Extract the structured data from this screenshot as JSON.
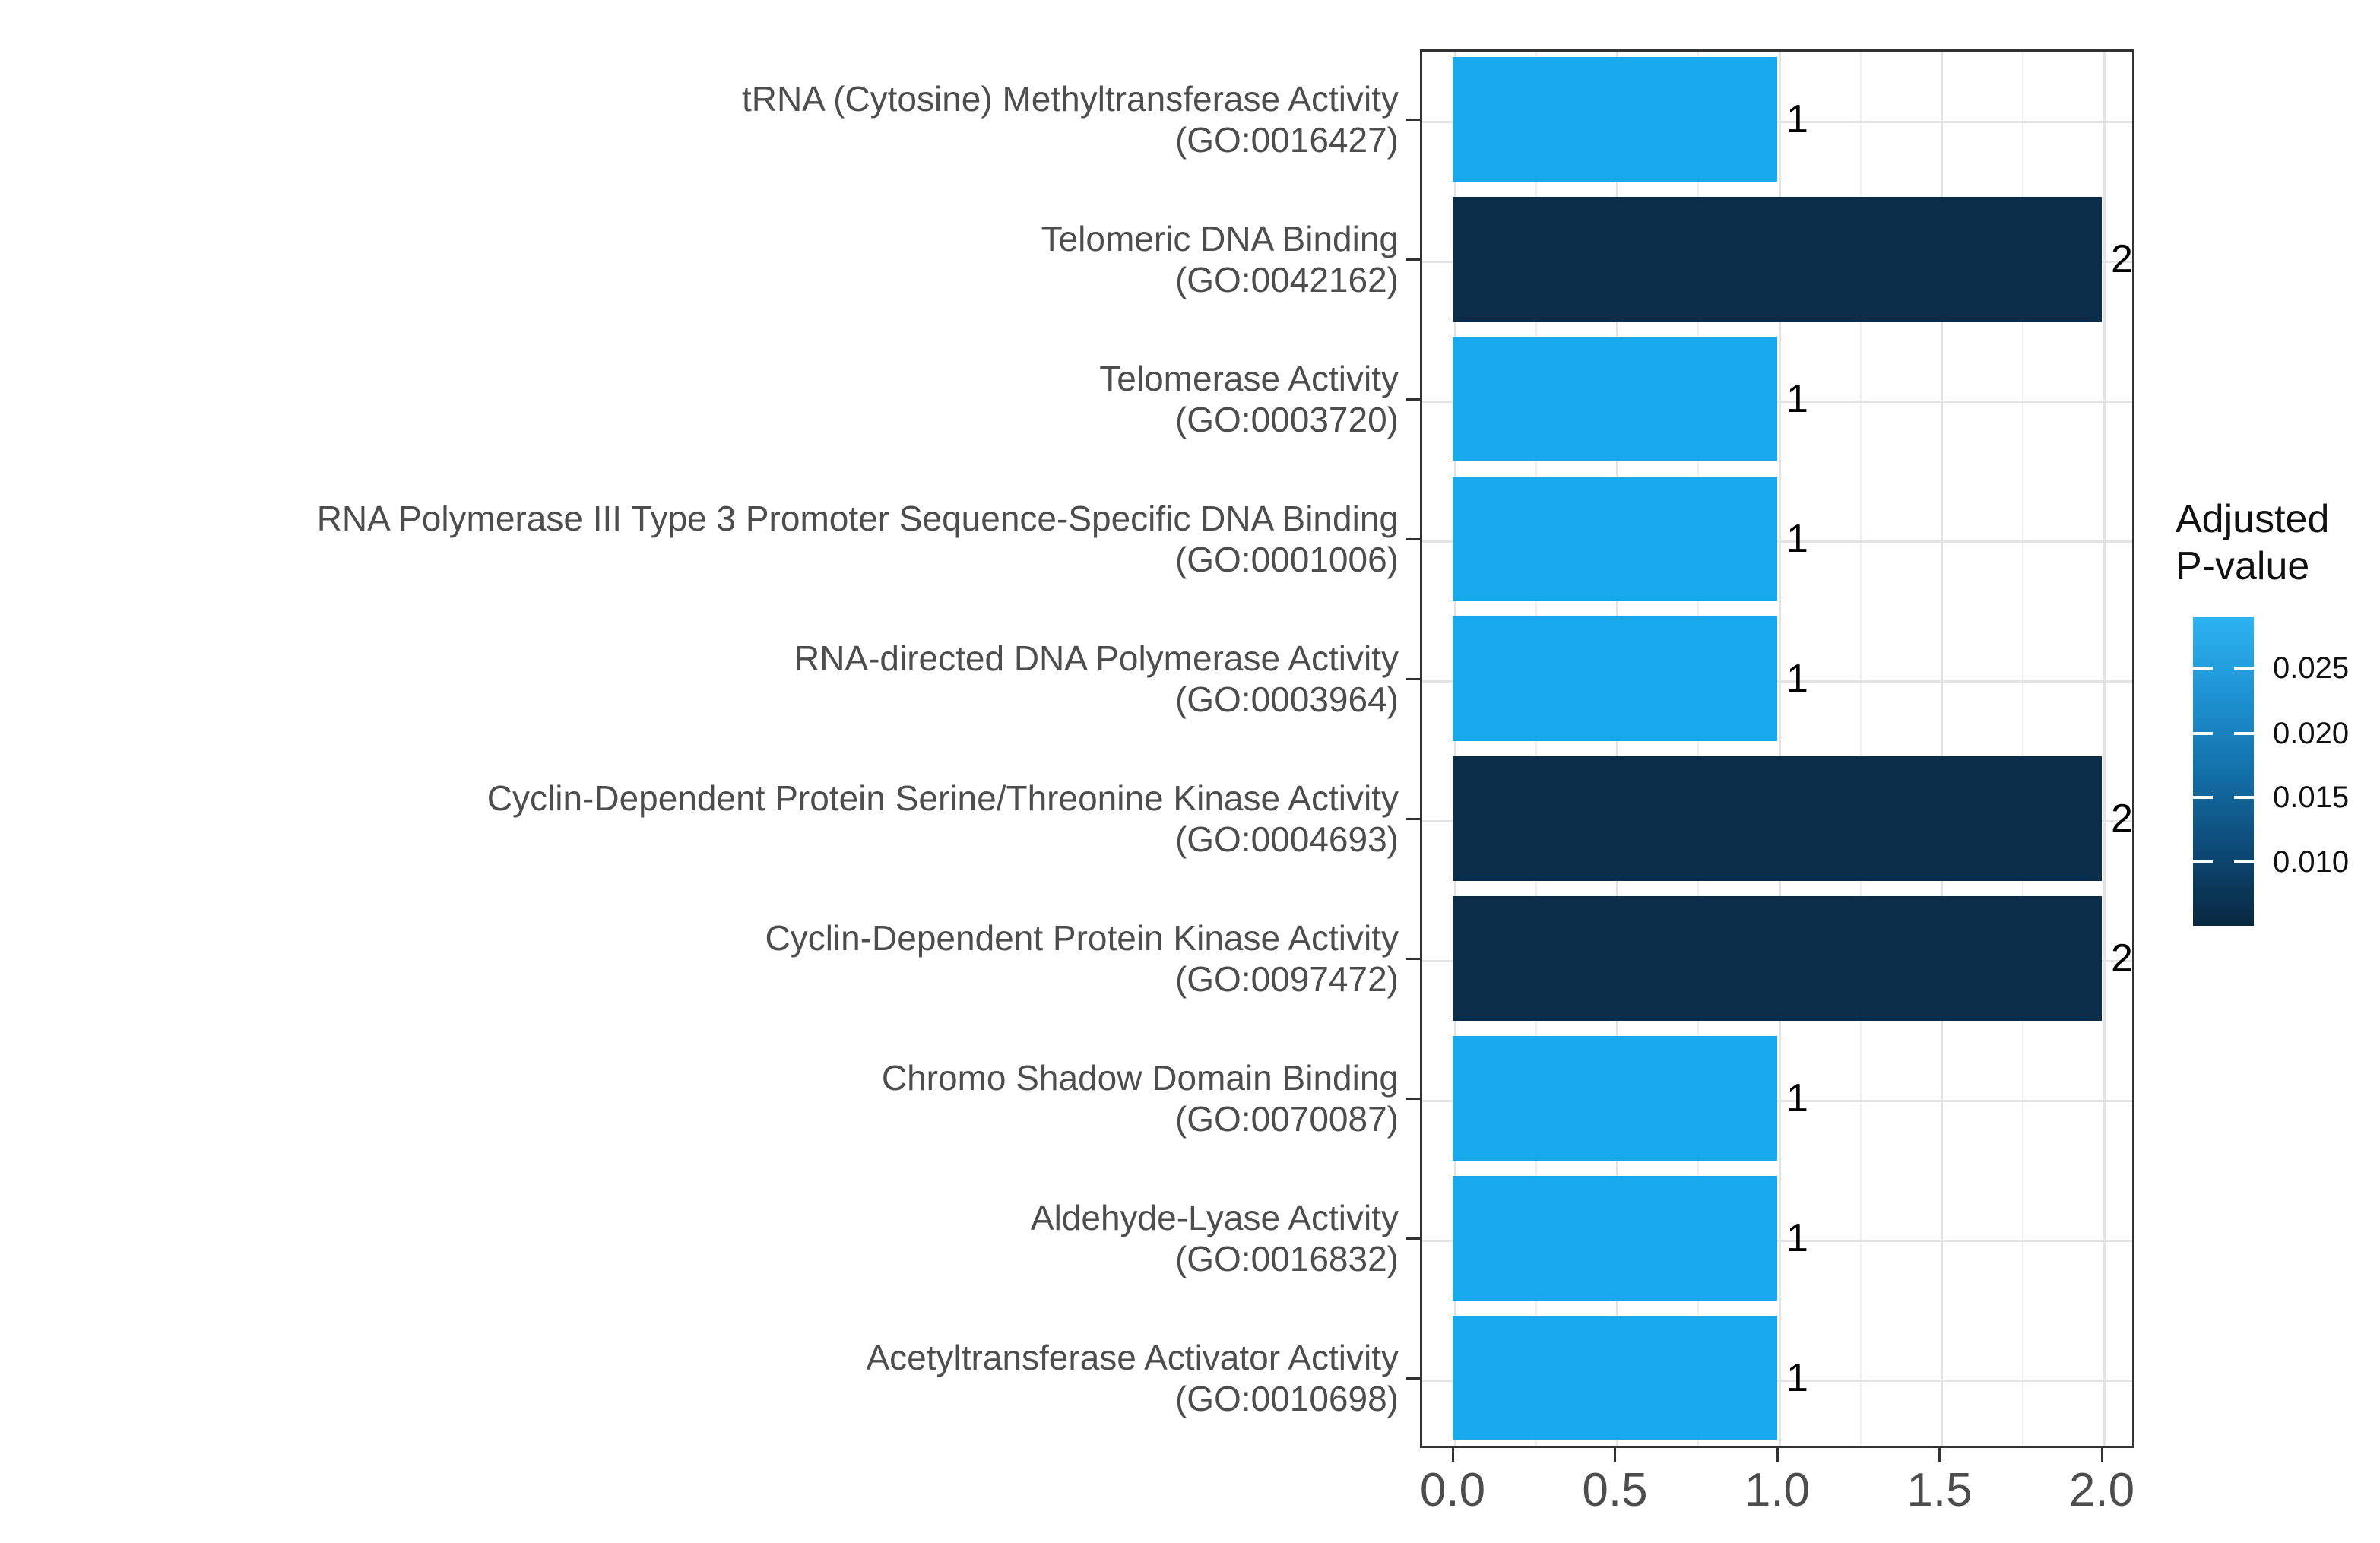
{
  "chart_data": {
    "type": "bar",
    "orientation": "horizontal",
    "title": "",
    "xlabel": "",
    "ylabel": "",
    "categories": [
      {
        "term": "tRNA (Cytosine) Methyltransferase Activity",
        "go_id": "(GO:0016427)"
      },
      {
        "term": "Telomeric DNA Binding",
        "go_id": "(GO:0042162)"
      },
      {
        "term": "Telomerase Activity",
        "go_id": "(GO:0003720)"
      },
      {
        "term": "RNA Polymerase III Type 3 Promoter Sequence-Specific DNA Binding",
        "go_id": "(GO:0001006)"
      },
      {
        "term": "RNA-directed DNA Polymerase Activity",
        "go_id": "(GO:0003964)"
      },
      {
        "term": "Cyclin-Dependent Protein Serine/Threonine Kinase Activity",
        "go_id": "(GO:0004693)"
      },
      {
        "term": "Cyclin-Dependent Protein Kinase Activity",
        "go_id": "(GO:0097472)"
      },
      {
        "term": "Chromo Shadow Domain Binding",
        "go_id": "(GO:0070087)"
      },
      {
        "term": "Aldehyde-Lyase Activity",
        "go_id": "(GO:0016832)"
      },
      {
        "term": "Acetyltransferase Activator Activity",
        "go_id": "(GO:0010698)"
      }
    ],
    "values": [
      1,
      2,
      1,
      1,
      1,
      2,
      2,
      1,
      1,
      1
    ],
    "bar_value_labels": [
      "1",
      "2",
      "1",
      "1",
      "1",
      "2",
      "2",
      "1",
      "1",
      "1"
    ],
    "x_ticks": [
      "0.0",
      "0.5",
      "1.0",
      "1.5",
      "2.0"
    ],
    "x_tick_values": [
      0,
      0.5,
      1.0,
      1.5,
      2.0
    ],
    "x_minor_tick_values": [
      0.25,
      0.75,
      1.25,
      1.75
    ],
    "xlim": [
      -0.1,
      2.1
    ],
    "grid": true,
    "colors": {
      "high_pvalue_bar": "#17A8EE",
      "low_pvalue_bar": "#0C2D4A",
      "grid_major": "#E3E3E3",
      "grid_minor": "#EFEFEF"
    },
    "legend": {
      "position": "right",
      "title_lines": [
        "Adjusted",
        "P-value"
      ],
      "tick_labels": [
        "0.025",
        "0.020",
        "0.015",
        "0.010"
      ],
      "gradient_stops": [
        "#2CB3F2",
        "#1E93D3",
        "#1371A9",
        "#0D4A77",
        "#08273F"
      ]
    }
  }
}
